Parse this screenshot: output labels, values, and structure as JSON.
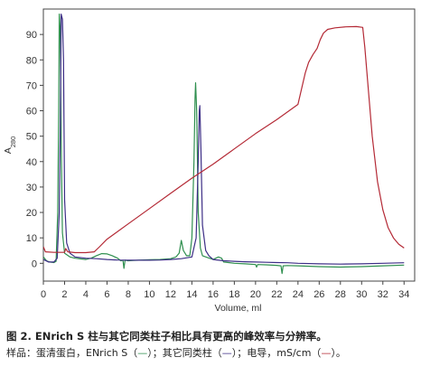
{
  "chart_data": {
    "type": "line",
    "xlabel": "Volume, ml",
    "ylabel": "A",
    "ylabel_sub": "280",
    "xlim": [
      0,
      35
    ],
    "ylim": [
      -7,
      100
    ],
    "x_ticks": [
      0,
      2,
      4,
      6,
      8,
      10,
      12,
      14,
      16,
      18,
      20,
      22,
      24,
      26,
      28,
      30,
      32,
      34
    ],
    "y_ticks": [
      0,
      10,
      20,
      30,
      40,
      50,
      60,
      70,
      80,
      90
    ],
    "grid": false,
    "legend": "none",
    "series": [
      {
        "color": "#2f8f4f",
        "points": [
          [
            0,
            2.5
          ],
          [
            0.3,
            1
          ],
          [
            0.6,
            0.5
          ],
          [
            1,
            0.3
          ],
          [
            1.2,
            0.8
          ],
          [
            1.35,
            20
          ],
          [
            1.45,
            60
          ],
          [
            1.5,
            98
          ],
          [
            1.58,
            92
          ],
          [
            1.7,
            40
          ],
          [
            1.8,
            12
          ],
          [
            2,
            4
          ],
          [
            2.5,
            2.5
          ],
          [
            3,
            2
          ],
          [
            4,
            1.5
          ],
          [
            4.5,
            2
          ],
          [
            5,
            3
          ],
          [
            5.5,
            3.8
          ],
          [
            6,
            3.7
          ],
          [
            6.5,
            3
          ],
          [
            7,
            2
          ],
          [
            7.3,
            1
          ],
          [
            7.5,
            1.2
          ],
          [
            7.6,
            -2
          ],
          [
            7.7,
            1.2
          ],
          [
            8,
            1
          ],
          [
            8.5,
            1.1
          ],
          [
            9,
            1.2
          ],
          [
            10,
            1.4
          ],
          [
            11,
            1.5
          ],
          [
            12,
            1.8
          ],
          [
            12.5,
            2.5
          ],
          [
            12.8,
            4
          ],
          [
            13,
            9
          ],
          [
            13.2,
            5
          ],
          [
            13.5,
            3
          ],
          [
            13.8,
            3
          ],
          [
            14,
            10
          ],
          [
            14.2,
            40
          ],
          [
            14.3,
            65
          ],
          [
            14.35,
            71
          ],
          [
            14.45,
            60
          ],
          [
            14.6,
            20
          ],
          [
            14.8,
            6
          ],
          [
            15,
            3
          ],
          [
            15.5,
            2.2
          ],
          [
            16,
            1.5
          ],
          [
            16.5,
            2.5
          ],
          [
            16.8,
            2
          ],
          [
            17,
            0.5
          ],
          [
            18,
            0
          ],
          [
            19,
            -0.2
          ],
          [
            20,
            -0.5
          ],
          [
            20.1,
            -1.5
          ],
          [
            20.2,
            -0.5
          ],
          [
            21,
            -0.6
          ],
          [
            22,
            -0.8
          ],
          [
            22.4,
            -1
          ],
          [
            22.5,
            -4
          ],
          [
            22.6,
            -1
          ],
          [
            23,
            -0.9
          ],
          [
            24,
            -1
          ],
          [
            26,
            -1.3
          ],
          [
            28,
            -1.5
          ],
          [
            30,
            -1.3
          ],
          [
            32,
            -1
          ],
          [
            34,
            -0.7
          ]
        ]
      },
      {
        "color": "#3d2e86",
        "points": [
          [
            0,
            1.5
          ],
          [
            0.5,
            0.5
          ],
          [
            1,
            0.5
          ],
          [
            1.3,
            2
          ],
          [
            1.5,
            20
          ],
          [
            1.6,
            55
          ],
          [
            1.68,
            98
          ],
          [
            1.8,
            96
          ],
          [
            1.9,
            80
          ],
          [
            2,
            25
          ],
          [
            2.2,
            8
          ],
          [
            2.5,
            4
          ],
          [
            3,
            2.5
          ],
          [
            4,
            2
          ],
          [
            5,
            1.8
          ],
          [
            6,
            1.5
          ],
          [
            7,
            1.3
          ],
          [
            8,
            1.2
          ],
          [
            9,
            1.2
          ],
          [
            10,
            1.2
          ],
          [
            11,
            1.3
          ],
          [
            12,
            1.5
          ],
          [
            13,
            1.8
          ],
          [
            14,
            2.5
          ],
          [
            14.4,
            10
          ],
          [
            14.6,
            40
          ],
          [
            14.7,
            60
          ],
          [
            14.75,
            62
          ],
          [
            14.85,
            45
          ],
          [
            15,
            15
          ],
          [
            15.3,
            5
          ],
          [
            15.6,
            3
          ],
          [
            16,
            1.5
          ],
          [
            17,
            1
          ],
          [
            18,
            0.8
          ],
          [
            19,
            0.6
          ],
          [
            20,
            0.5
          ],
          [
            21,
            0.4
          ],
          [
            22,
            0.3
          ],
          [
            23,
            0.2
          ],
          [
            24,
            0
          ],
          [
            26,
            -0.2
          ],
          [
            28,
            -0.3
          ],
          [
            30,
            -0.2
          ],
          [
            32,
            0
          ],
          [
            34,
            0.2
          ]
        ]
      },
      {
        "color": "#b42a36",
        "points": [
          [
            0,
            6.5
          ],
          [
            0.2,
            4.5
          ],
          [
            1,
            4.3
          ],
          [
            2,
            4.3
          ],
          [
            2.1,
            5.8
          ],
          [
            2.3,
            4.5
          ],
          [
            3,
            4.2
          ],
          [
            4,
            4.2
          ],
          [
            4.8,
            4.5
          ],
          [
            5.3,
            6.5
          ],
          [
            6,
            9.5
          ],
          [
            8,
            15.5
          ],
          [
            10,
            21.5
          ],
          [
            12,
            27.5
          ],
          [
            14,
            33.5
          ],
          [
            16,
            39
          ],
          [
            18,
            45
          ],
          [
            20,
            51
          ],
          [
            22,
            56.5
          ],
          [
            24,
            62.5
          ],
          [
            24.3,
            68
          ],
          [
            24.7,
            75
          ],
          [
            25,
            79
          ],
          [
            25.4,
            82
          ],
          [
            25.8,
            84.5
          ],
          [
            26.1,
            88
          ],
          [
            26.4,
            90.5
          ],
          [
            26.8,
            92
          ],
          [
            27.5,
            92.6
          ],
          [
            28.5,
            93
          ],
          [
            29.5,
            93.1
          ],
          [
            30.1,
            92.8
          ],
          [
            30.3,
            85
          ],
          [
            30.7,
            65
          ],
          [
            31,
            50
          ],
          [
            31.5,
            32
          ],
          [
            32,
            21
          ],
          [
            32.5,
            14
          ],
          [
            33,
            10
          ],
          [
            33.5,
            7.5
          ],
          [
            34,
            6
          ]
        ]
      }
    ]
  },
  "caption": {
    "title": "图 2. ENrich S 柱与其它同类柱子相比具有更高的峰效率与分辨率。",
    "line2": {
      "prefix": "样品：蛋清蛋白，ENrich S（",
      "swatch1": "—",
      "mid1": "）；其它同类柱（",
      "swatch2": "—",
      "mid2": "）；电导，mS/cm（",
      "swatch3": "—",
      "suffix": "）。"
    }
  }
}
